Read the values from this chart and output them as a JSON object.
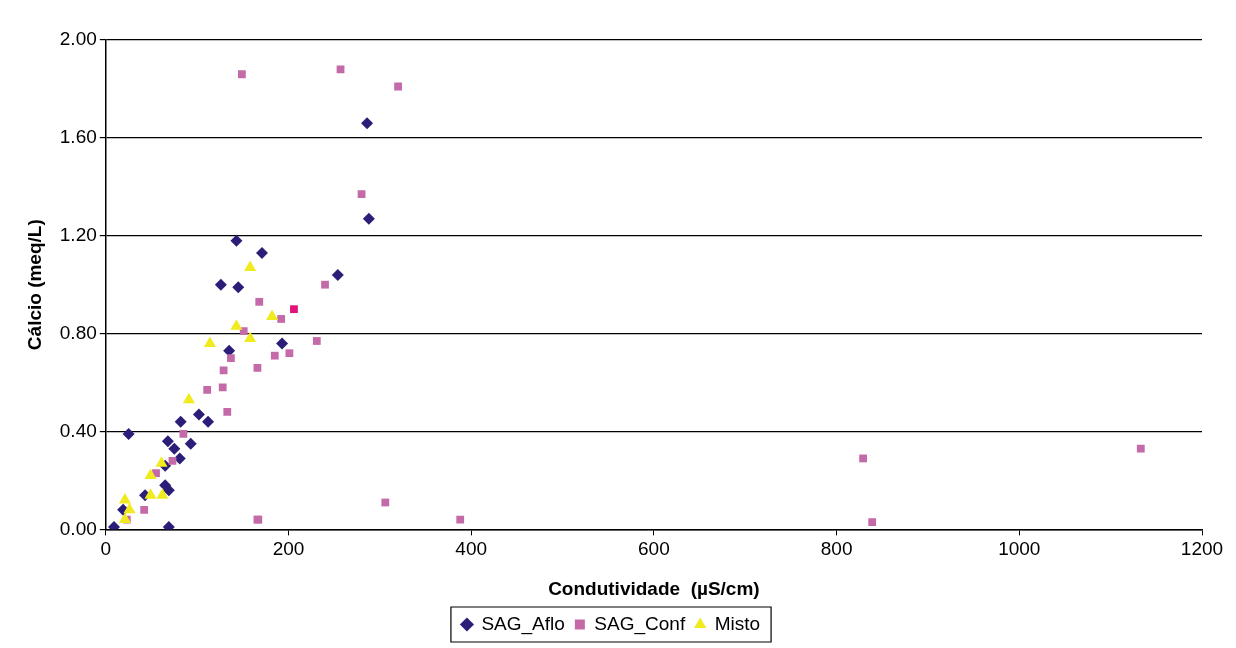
{
  "chart_data": {
    "type": "scatter",
    "xlabel": "Condutividade  (µS/cm)",
    "ylabel": "Cálcio (meq/L)",
    "xlim": [
      0,
      1200
    ],
    "xticks": [
      0,
      200,
      400,
      600,
      800,
      1000,
      1200
    ],
    "ylim": [
      0,
      2
    ],
    "yticks": [
      {
        "value": 0,
        "label": "0.00"
      },
      {
        "value": 0.4,
        "label": "0.40"
      },
      {
        "value": 0.8,
        "label": "0.80"
      },
      {
        "value": 1.2,
        "label": "1.20"
      },
      {
        "value": 1.6,
        "label": "1.60"
      },
      {
        "value": 2,
        "label": "2.00"
      }
    ],
    "grid": "y",
    "legend": "bottom",
    "series": [
      {
        "name": "SAG_Aflo",
        "color": "#2b1e78",
        "marker": "diamond",
        "x": [
          143,
          171,
          126,
          145,
          286,
          288,
          254,
          193,
          135,
          25,
          82,
          102,
          112,
          68,
          93,
          75,
          81,
          65,
          69,
          43,
          19,
          9,
          69,
          65
        ],
        "values": [
          1.18,
          1.13,
          1.0,
          0.99,
          1.66,
          1.27,
          1.04,
          0.76,
          0.73,
          0.39,
          0.44,
          0.47,
          0.44,
          0.36,
          0.35,
          0.33,
          0.29,
          0.18,
          0.16,
          0.14,
          0.08,
          0.01,
          0.01,
          0.26
        ]
      },
      {
        "name": "SAG_Conf",
        "color": "#c46aa8",
        "marker": "square",
        "colors": [
          "#c46aa8",
          "#c46aa8",
          "#c46aa8",
          "#c46aa8",
          "#c46aa8",
          "#c46aa8",
          "#e0137a",
          "#c46aa8",
          "#c46aa8",
          "#c46aa8",
          "#c46aa8",
          "#c46aa8",
          "#c46aa8",
          "#c46aa8",
          "#c46aa8",
          "#c46aa8",
          "#c46aa8",
          "#c46aa8",
          "#c46aa8",
          "#c46aa8",
          "#c46aa8",
          "#c46aa8",
          "#c46aa8",
          "#c46aa8",
          "#c46aa8",
          "#c46aa8",
          "#c46aa8",
          "#c46aa8",
          "#c46aa8",
          "#c46aa8"
        ],
        "x": [
          149,
          168,
          257,
          320,
          280,
          240,
          206,
          192,
          231,
          185,
          201,
          306,
          388,
          166,
          829,
          839,
          1133,
          151,
          137,
          129,
          166,
          111,
          128,
          133,
          85,
          73,
          55,
          42,
          23,
          167
        ],
        "values": [
          1.86,
          0.93,
          1.88,
          1.81,
          1.37,
          1.0,
          0.9,
          0.86,
          0.77,
          0.71,
          0.72,
          0.11,
          0.04,
          0.04,
          0.29,
          0.03,
          0.33,
          0.81,
          0.7,
          0.65,
          0.66,
          0.57,
          0.58,
          0.48,
          0.39,
          0.28,
          0.23,
          0.08,
          0.04,
          0.04
        ]
      },
      {
        "name": "Misto",
        "color": "#f0eb1e",
        "marker": "triangle",
        "x": [
          158,
          143,
          182,
          158,
          114,
          91,
          61,
          49,
          49,
          62,
          21,
          26,
          21
        ],
        "values": [
          1.07,
          0.83,
          0.87,
          0.78,
          0.76,
          0.53,
          0.27,
          0.22,
          0.14,
          0.14,
          0.12,
          0.08,
          0.04
        ]
      }
    ]
  }
}
